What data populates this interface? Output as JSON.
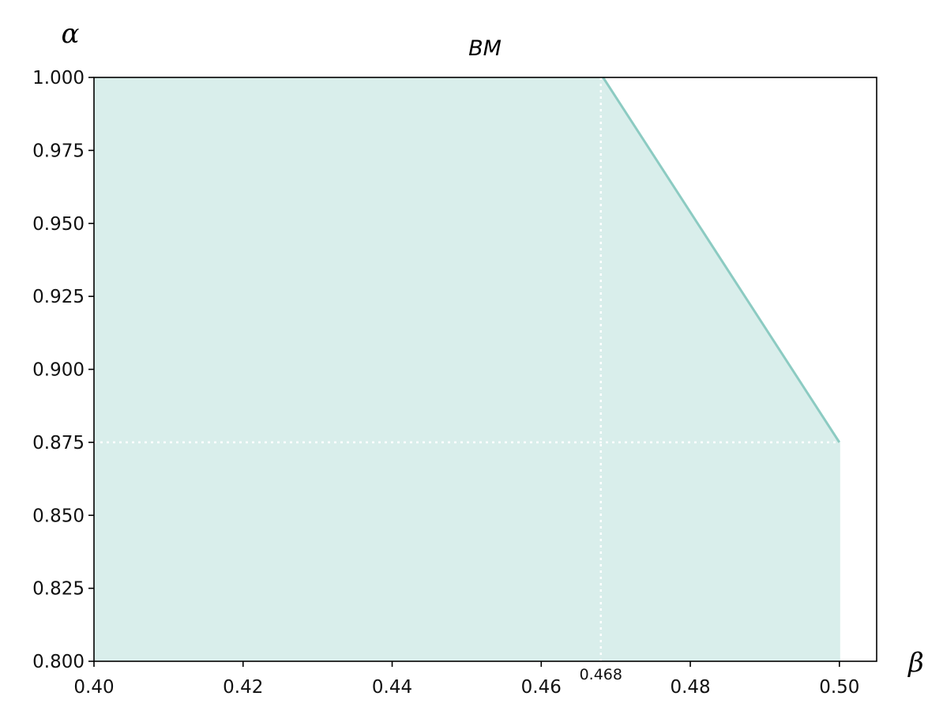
{
  "chart_data": {
    "type": "area",
    "title": "BM",
    "xlabel": "β",
    "ylabel": "α",
    "xlim": [
      0.4,
      0.505
    ],
    "ylim": [
      0.8,
      1.0
    ],
    "x_ticks": [
      0.4,
      0.42,
      0.44,
      0.46,
      0.48,
      0.5
    ],
    "x_tick_labels": [
      "0.40",
      "0.42",
      "0.44",
      "0.46",
      "0.48",
      "0.50"
    ],
    "y_ticks": [
      0.8,
      0.825,
      0.85,
      0.875,
      0.9,
      0.925,
      0.95,
      0.975,
      1.0
    ],
    "y_tick_labels": [
      "0.800",
      "0.825",
      "0.850",
      "0.875",
      "0.900",
      "0.925",
      "0.950",
      "0.975",
      "1.000"
    ],
    "grid": false,
    "series": [
      {
        "x": [
          0.4,
          0.4683,
          0.5
        ],
        "y": [
          1.0,
          1.0,
          0.875
        ],
        "fill_to": 0.8,
        "line_color": "#8ccbc2",
        "fill_color": "#d9eeeb"
      }
    ],
    "reference_lines": [
      {
        "orientation": "vertical",
        "x": 0.468,
        "style": "dotted",
        "color": "#ffffff"
      },
      {
        "orientation": "horizontal",
        "y": 0.875,
        "style": "dotted",
        "color": "#ffffff"
      }
    ],
    "annotations": [
      {
        "text": "0.468",
        "x": 0.468
      }
    ]
  }
}
